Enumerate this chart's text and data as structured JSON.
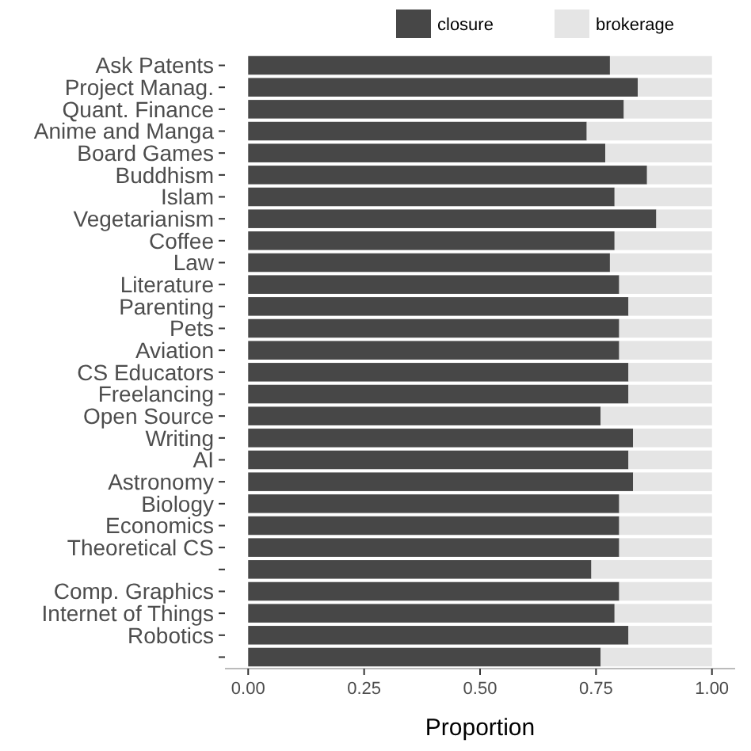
{
  "chart_data": {
    "type": "bar",
    "orientation": "horizontal",
    "stacked": true,
    "xlabel": "Proportion",
    "categories": [
      "Ask Patents",
      "Project Manag.",
      "Quant. Finance",
      "Anime and Manga",
      "Board Games",
      "Buddhism",
      "Islam",
      "Vegetarianism",
      "Coffee",
      "Law",
      "Literature",
      "Parenting",
      "Pets",
      "Aviation",
      "CS Educators",
      "Freelancing",
      "Open Source",
      "Writing",
      "AI",
      "Astronomy",
      "Biology",
      "Economics",
      "Theoretical CS",
      null,
      "Comp. Graphics",
      "Internet of Things",
      "Robotics",
      null
    ],
    "series": [
      {
        "name": "closure",
        "color": "#474747",
        "values": [
          0.78,
          0.84,
          0.81,
          0.73,
          0.77,
          0.86,
          0.79,
          0.88,
          0.79,
          0.78,
          0.8,
          0.82,
          0.8,
          0.8,
          0.82,
          0.82,
          0.76,
          0.83,
          0.82,
          0.83,
          0.8,
          0.8,
          0.8,
          0.74,
          0.8,
          0.79,
          0.82,
          0.76
        ]
      },
      {
        "name": "brokerage",
        "color": "#e5e5e5",
        "values": [
          0.22,
          0.16,
          0.19,
          0.27,
          0.23,
          0.14,
          0.21,
          0.12,
          0.21,
          0.22,
          0.2,
          0.18,
          0.2,
          0.2,
          0.18,
          0.18,
          0.24,
          0.17,
          0.18,
          0.17,
          0.2,
          0.2,
          0.2,
          0.26,
          0.2,
          0.21,
          0.18,
          0.24
        ]
      }
    ],
    "xlim": [
      -0.05,
      1.05
    ],
    "xticks": [
      {
        "value": 0,
        "label": "0.00"
      },
      {
        "value": 0.25,
        "label": "0.25"
      },
      {
        "value": 0.5,
        "label": "0.50"
      },
      {
        "value": 0.75,
        "label": "0.75"
      },
      {
        "value": 1,
        "label": "1.00"
      }
    ],
    "legend": "top",
    "grid": false
  }
}
